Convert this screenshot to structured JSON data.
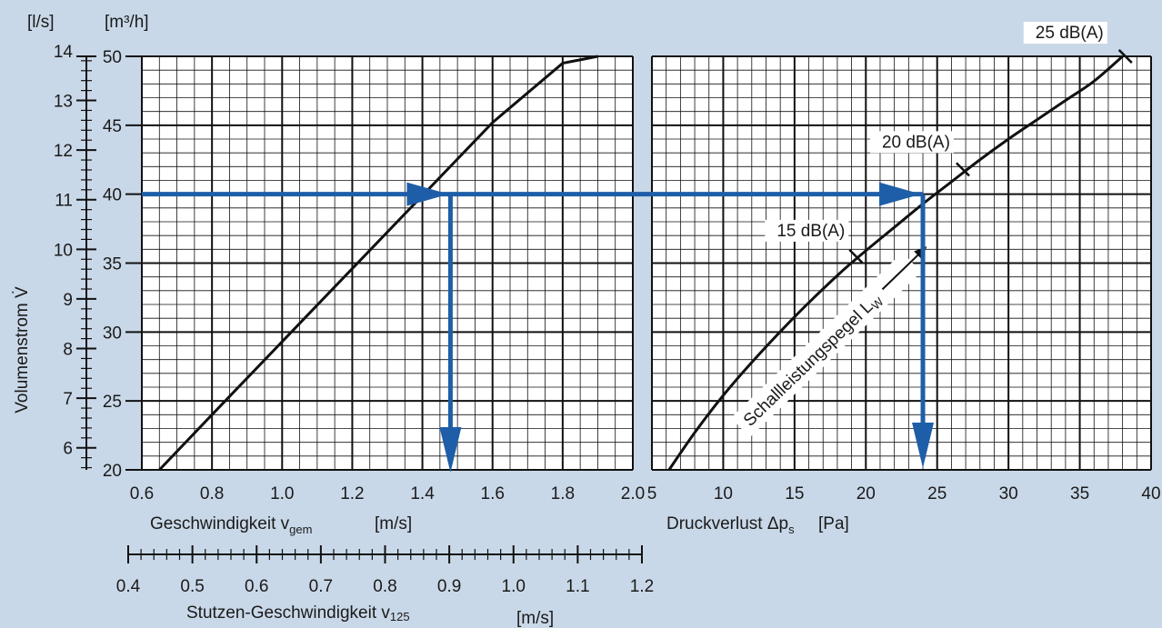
{
  "chart_data": [
    {
      "type": "line",
      "x_axis": {
        "label_main": "Geschwindigkeit v",
        "label_sub": "gem",
        "label_unit": "[m/s]",
        "range": [
          0.6,
          2.0
        ],
        "ticks": [
          "0.6",
          "0.8",
          "1.0",
          "1.2",
          "1.4",
          "1.6",
          "1.8",
          "2.0"
        ]
      },
      "y_axis": {
        "unit_m3h": "[m³/h]",
        "unit_ls": "[l/s]",
        "range_m3h": [
          20,
          50
        ],
        "ticks_m3h": [
          "20",
          "25",
          "30",
          "35",
          "40",
          "45",
          "50"
        ],
        "range_ls": [
          5.556,
          13.889
        ],
        "ticks_ls": [
          "6",
          "7",
          "8",
          "9",
          "10",
          "11",
          "12",
          "13",
          "14"
        ],
        "label": "Volumenstrom V̇"
      },
      "series": [
        {
          "x": [
            0.65,
            0.8,
            1.0,
            1.2,
            1.4,
            1.6,
            1.8,
            1.9
          ],
          "y": [
            20,
            24.0,
            29.3,
            34.6,
            39.9,
            45.2,
            49.5,
            50
          ]
        }
      ],
      "grid": true
    },
    {
      "type": "line",
      "x_axis": {
        "label": "Druckverlust Δp",
        "label_sub": "s",
        "label_unit": "[Pa]",
        "range": [
          5,
          40
        ],
        "ticks": [
          "5",
          "10",
          "15",
          "20",
          "25",
          "30",
          "35",
          "40"
        ]
      },
      "series": [
        {
          "x": [
            6.2,
            8,
            10,
            12,
            15,
            18,
            20,
            22,
            24,
            26,
            28,
            30,
            32,
            34,
            36,
            38
          ],
          "y": [
            20,
            22.7,
            25.4,
            27.8,
            31.1,
            34.1,
            35.9,
            37.6,
            39.3,
            40.9,
            42.5,
            44.0,
            45.4,
            46.8,
            48.2,
            50
          ]
        }
      ],
      "sound_marks": [
        {
          "label": "15 dB(A)",
          "x": 19.3,
          "y": 35.5
        },
        {
          "label": "20 dB(A)",
          "x": 26.8,
          "y": 41.8
        },
        {
          "label": "25 dB(A)",
          "x": 38.2,
          "y": 50
        }
      ],
      "curve_label": {
        "main": "Schallleistungspegel L",
        "sub": "W"
      },
      "grid": true
    },
    {
      "type": "axis",
      "label_main": "Stutzen-Geschwindigkeit v",
      "label_sub": "125",
      "label_unit": "[m/s]",
      "range": [
        0.4,
        1.2
      ],
      "ticks": [
        "0.4",
        "0.5",
        "0.6",
        "0.7",
        "0.8",
        "0.9",
        "1.0",
        "1.1",
        "1.2"
      ]
    }
  ],
  "example_path": {
    "volume_m3h": 40,
    "velocity_ms": 1.48,
    "pressure_pa": 24
  },
  "colors": {
    "background": "#c9d8e8",
    "plot": "#ffffff",
    "grid": "#111111",
    "curve": "#111111",
    "arrow": "#1e5ea8"
  }
}
